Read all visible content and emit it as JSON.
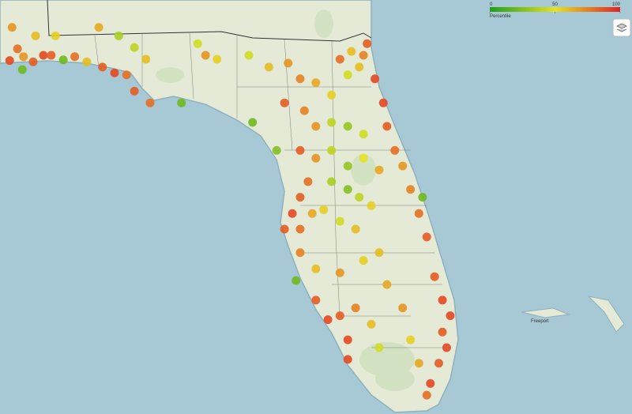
{
  "legend": {
    "title": "Percentile",
    "ticks": [
      0,
      50,
      100
    ],
    "colors": [
      "#1f9e1f",
      "#e6e222",
      "#e32222"
    ]
  },
  "map_labels": [
    "Freeport"
  ],
  "points": [
    {
      "lon": -87.37,
      "lat": 30.36,
      "percentile": 90
    },
    {
      "lon": -87.24,
      "lat": 30.54,
      "percentile": 80
    },
    {
      "lon": -87.14,
      "lat": 30.42,
      "percentile": 70
    },
    {
      "lon": -86.98,
      "lat": 30.34,
      "percentile": 85
    },
    {
      "lon": -87.16,
      "lat": 30.22,
      "percentile": 20
    },
    {
      "lon": -86.81,
      "lat": 30.44,
      "percentile": 90
    },
    {
      "lon": -86.68,
      "lat": 30.44,
      "percentile": 85
    },
    {
      "lon": -86.48,
      "lat": 30.37,
      "percentile": 20
    },
    {
      "lon": -86.29,
      "lat": 30.42,
      "percentile": 80
    },
    {
      "lon": -86.09,
      "lat": 30.34,
      "percentile": 60
    },
    {
      "lon": -85.83,
      "lat": 30.26,
      "percentile": 85
    },
    {
      "lon": -85.63,
      "lat": 30.17,
      "percentile": 90
    },
    {
      "lon": -85.43,
      "lat": 30.14,
      "percentile": 80
    },
    {
      "lon": -85.3,
      "lat": 29.89,
      "percentile": 85
    },
    {
      "lon": -85.04,
      "lat": 29.71,
      "percentile": 80
    },
    {
      "lon": -84.52,
      "lat": 29.71,
      "percentile": 20
    },
    {
      "lon": -83.34,
      "lat": 29.41,
      "percentile": 20
    },
    {
      "lon": -82.94,
      "lat": 28.98,
      "percentile": 25
    },
    {
      "lon": -87.33,
      "lat": 30.87,
      "percentile": 70
    },
    {
      "lon": -86.94,
      "lat": 30.74,
      "percentile": 60
    },
    {
      "lon": -86.61,
      "lat": 30.74,
      "percentile": 55
    },
    {
      "lon": -85.89,
      "lat": 30.87,
      "percentile": 65
    },
    {
      "lon": -85.56,
      "lat": 30.74,
      "percentile": 35
    },
    {
      "lon": -85.3,
      "lat": 30.56,
      "percentile": 40
    },
    {
      "lon": -85.11,
      "lat": 30.38,
      "percentile": 60
    },
    {
      "lon": -84.25,
      "lat": 30.62,
      "percentile": 45
    },
    {
      "lon": -84.12,
      "lat": 30.44,
      "percentile": 70
    },
    {
      "lon": -83.93,
      "lat": 30.38,
      "percentile": 55
    },
    {
      "lon": -83.4,
      "lat": 30.44,
      "percentile": 45
    },
    {
      "lon": -83.07,
      "lat": 30.26,
      "percentile": 60
    },
    {
      "lon": -82.75,
      "lat": 30.32,
      "percentile": 70
    },
    {
      "lon": -82.55,
      "lat": 30.08,
      "percentile": 75
    },
    {
      "lon": -82.29,
      "lat": 30.02,
      "percentile": 65
    },
    {
      "lon": -82.03,
      "lat": 29.83,
      "percentile": 55
    },
    {
      "lon": -81.76,
      "lat": 30.14,
      "percentile": 45
    },
    {
      "lon": -81.57,
      "lat": 30.26,
      "percentile": 60
    },
    {
      "lon": -81.5,
      "lat": 30.44,
      "percentile": 75
    },
    {
      "lon": -81.7,
      "lat": 30.5,
      "percentile": 60
    },
    {
      "lon": -81.89,
      "lat": 30.38,
      "percentile": 80
    },
    {
      "lon": -81.44,
      "lat": 30.62,
      "percentile": 85
    },
    {
      "lon": -81.31,
      "lat": 30.08,
      "percentile": 90
    },
    {
      "lon": -81.17,
      "lat": 29.71,
      "percentile": 90
    },
    {
      "lon": -81.11,
      "lat": 29.35,
      "percentile": 85
    },
    {
      "lon": -80.98,
      "lat": 28.98,
      "percentile": 80
    },
    {
      "lon": -80.85,
      "lat": 28.74,
      "percentile": 70
    },
    {
      "lon": -82.81,
      "lat": 29.71,
      "percentile": 85
    },
    {
      "lon": -82.48,
      "lat": 29.59,
      "percentile": 75
    },
    {
      "lon": -82.29,
      "lat": 29.35,
      "percentile": 70
    },
    {
      "lon": -82.03,
      "lat": 29.41,
      "percentile": 40
    },
    {
      "lon": -81.76,
      "lat": 29.35,
      "percentile": 30
    },
    {
      "lon": -81.5,
      "lat": 29.23,
      "percentile": 45
    },
    {
      "lon": -82.55,
      "lat": 28.98,
      "percentile": 85
    },
    {
      "lon": -82.29,
      "lat": 28.86,
      "percentile": 70
    },
    {
      "lon": -82.03,
      "lat": 28.98,
      "percentile": 40
    },
    {
      "lon": -81.76,
      "lat": 28.74,
      "percentile": 30
    },
    {
      "lon": -81.5,
      "lat": 28.86,
      "percentile": 50
    },
    {
      "lon": -81.24,
      "lat": 28.68,
      "percentile": 65
    },
    {
      "lon": -82.03,
      "lat": 28.5,
      "percentile": 35
    },
    {
      "lon": -81.76,
      "lat": 28.38,
      "percentile": 25
    },
    {
      "lon": -81.57,
      "lat": 28.26,
      "percentile": 40
    },
    {
      "lon": -81.37,
      "lat": 28.13,
      "percentile": 55
    },
    {
      "lon": -82.42,
      "lat": 28.5,
      "percentile": 80
    },
    {
      "lon": -82.55,
      "lat": 28.26,
      "percentile": 85
    },
    {
      "lon": -82.68,
      "lat": 28.01,
      "percentile": 90
    },
    {
      "lon": -82.81,
      "lat": 27.77,
      "percentile": 85
    },
    {
      "lon": -82.55,
      "lat": 27.77,
      "percentile": 80
    },
    {
      "lon": -82.35,
      "lat": 28.01,
      "percentile": 65
    },
    {
      "lon": -82.16,
      "lat": 28.07,
      "percentile": 55
    },
    {
      "lon": -81.89,
      "lat": 27.89,
      "percentile": 45
    },
    {
      "lon": -81.63,
      "lat": 27.77,
      "percentile": 60
    },
    {
      "lon": -80.72,
      "lat": 28.38,
      "percentile": 75
    },
    {
      "lon": -80.58,
      "lat": 28.01,
      "percentile": 80
    },
    {
      "lon": -80.45,
      "lat": 27.65,
      "percentile": 85
    },
    {
      "lon": -80.52,
      "lat": 28.26,
      "percentile": 20
    },
    {
      "lon": -82.55,
      "lat": 27.41,
      "percentile": 75
    },
    {
      "lon": -82.62,
      "lat": 26.98,
      "percentile": 20
    },
    {
      "lon": -82.29,
      "lat": 27.16,
      "percentile": 60
    },
    {
      "lon": -81.89,
      "lat": 27.1,
      "percentile": 70
    },
    {
      "lon": -81.5,
      "lat": 27.29,
      "percentile": 55
    },
    {
      "lon": -81.24,
      "lat": 27.41,
      "percentile": 60
    },
    {
      "lon": -81.11,
      "lat": 26.92,
      "percentile": 65
    },
    {
      "lon": -80.32,
      "lat": 27.04,
      "percentile": 85
    },
    {
      "lon": -80.19,
      "lat": 26.68,
      "percentile": 90
    },
    {
      "lon": -80.06,
      "lat": 26.44,
      "percentile": 90
    },
    {
      "lon": -80.19,
      "lat": 26.19,
      "percentile": 85
    },
    {
      "lon": -80.12,
      "lat": 25.95,
      "percentile": 90
    },
    {
      "lon": -80.25,
      "lat": 25.71,
      "percentile": 85
    },
    {
      "lon": -80.39,
      "lat": 25.4,
      "percentile": 90
    },
    {
      "lon": -80.45,
      "lat": 25.22,
      "percentile": 80
    },
    {
      "lon": -80.72,
      "lat": 26.07,
      "percentile": 55
    },
    {
      "lon": -80.58,
      "lat": 25.71,
      "percentile": 65
    },
    {
      "lon": -82.29,
      "lat": 26.68,
      "percentile": 85
    },
    {
      "lon": -82.09,
      "lat": 26.38,
      "percentile": 90
    },
    {
      "lon": -81.89,
      "lat": 26.44,
      "percentile": 85
    },
    {
      "lon": -81.76,
      "lat": 26.07,
      "percentile": 90
    },
    {
      "lon": -81.63,
      "lat": 26.56,
      "percentile": 75
    },
    {
      "lon": -81.37,
      "lat": 26.31,
      "percentile": 60
    },
    {
      "lon": -81.24,
      "lat": 25.95,
      "percentile": 45
    },
    {
      "lon": -80.85,
      "lat": 26.56,
      "percentile": 70
    },
    {
      "lon": -81.76,
      "lat": 25.77,
      "percentile": 90
    }
  ]
}
